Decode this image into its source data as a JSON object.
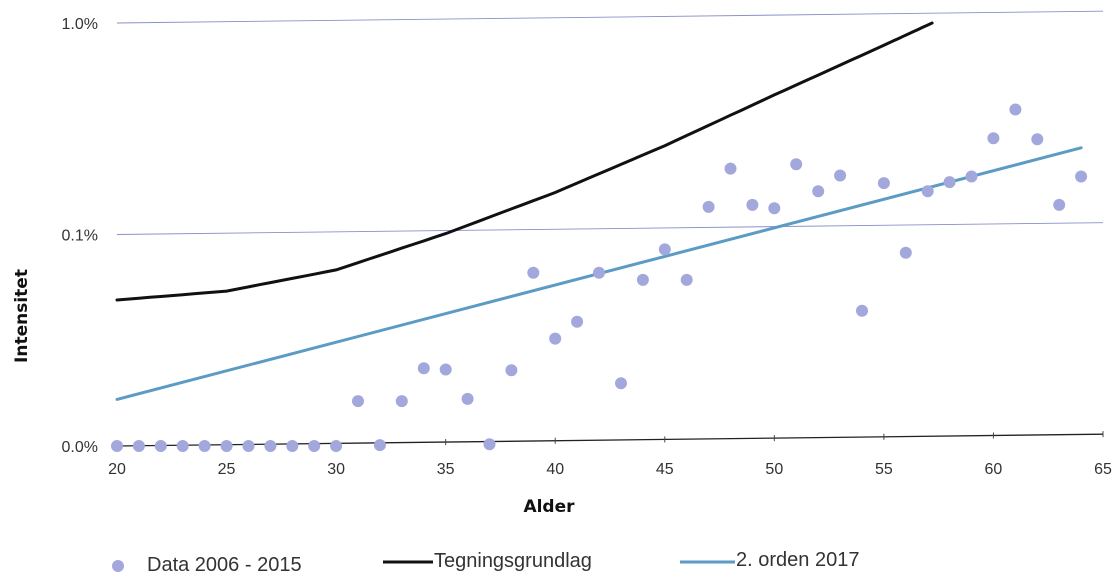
{
  "chart_data": {
    "type": "scatter",
    "xlabel": "Alder",
    "ylabel": "Intensitet",
    "xlim": [
      20,
      65
    ],
    "x_ticks": [
      "20",
      "25",
      "30",
      "35",
      "40",
      "45",
      "50",
      "55",
      "60",
      "65"
    ],
    "y_scale": "log",
    "y_ticks": [
      {
        "value": 0.0001,
        "label": "0.0%"
      },
      {
        "value": 0.001,
        "label": "0.1%"
      },
      {
        "value": 0.01,
        "label": "1.0%"
      }
    ],
    "grid": "horizontal",
    "legend_position": "bottom",
    "colors": {
      "data": "#a3a8dc",
      "tegning": "#111111",
      "orden": "#5b9bc4",
      "grid": "#8890c8"
    },
    "series": [
      {
        "name": "Data 2006 - 2015",
        "kind": "scatter",
        "x": [
          20,
          21,
          22,
          23,
          24,
          25,
          26,
          27,
          28,
          29,
          30,
          31,
          32,
          33,
          34,
          35,
          36,
          37,
          38,
          39,
          40,
          41,
          42,
          43,
          44,
          45,
          46,
          47,
          48,
          49,
          50,
          51,
          52,
          53,
          54,
          55,
          56,
          57,
          58,
          59,
          60,
          61,
          62,
          63,
          64
        ],
        "y": [
          0.0001,
          0.0001,
          0.0001,
          0.0001,
          0.0001,
          0.0001,
          0.0001,
          0.0001,
          0.0001,
          0.0001,
          0.0001,
          0.000163,
          0.000101,
          0.000163,
          0.000233,
          0.00023,
          0.000167,
          0.000102,
          0.000228,
          0.00066,
          0.000322,
          0.000387,
          0.00066,
          0.000198,
          0.00061,
          0.00085,
          0.00061,
          0.00135,
          0.00205,
          0.00138,
          0.00133,
          0.00215,
          0.0016,
          0.0019,
          0.000436,
          0.00175,
          0.00082,
          0.0016,
          0.00177,
          0.00188,
          0.00285,
          0.0039,
          0.00282,
          0.00138,
          0.00188
        ]
      },
      {
        "name": "Tegningsgrundlag",
        "kind": "line",
        "x": [
          20,
          25,
          30,
          35,
          40,
          45,
          50,
          55,
          57.2
        ],
        "y": [
          0.00049,
          0.00054,
          0.00068,
          0.00101,
          0.00158,
          0.00263,
          0.00457,
          0.00785,
          0.01
        ]
      },
      {
        "name": "2. orden 2017",
        "kind": "line",
        "x": [
          20,
          64
        ],
        "y": [
          0.000166,
          0.00257
        ]
      }
    ]
  }
}
